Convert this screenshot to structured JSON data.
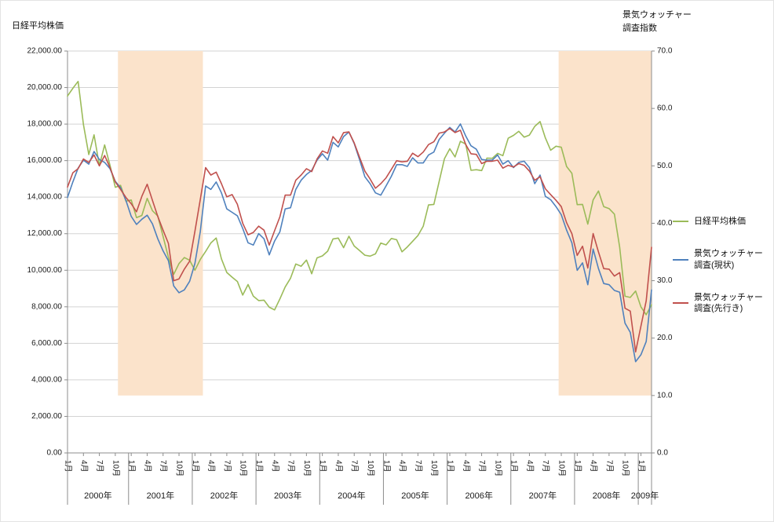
{
  "titles": {
    "left_axis_title": "日経平均株価",
    "right_axis_title": "景気ウォッチャー\n調査指数"
  },
  "legend": {
    "items": [
      {
        "name": "nikkei",
        "label": "日経平均株価",
        "color": "#9BBB59"
      },
      {
        "name": "watchers-current",
        "label": "景気ウォッチャー\n調査(現状)",
        "color": "#4F81BD"
      },
      {
        "name": "watchers-outlook",
        "label": "景気ウォッチャー\n調査(先行き)",
        "color": "#C0504D"
      }
    ]
  },
  "chart_data": {
    "type": "line",
    "title": "",
    "x": {
      "start": "2000-01",
      "end": "2009-03",
      "n_months": 111,
      "month_tick_labels": [
        "1月",
        "4月",
        "7月",
        "10月"
      ],
      "month_tick_offsets": [
        0,
        3,
        6,
        9
      ],
      "year_labels": [
        "2000年",
        "2001年",
        "2002年",
        "2003年",
        "2004年",
        "2005年",
        "2006年",
        "2007年",
        "2008年",
        "2009年"
      ]
    },
    "left_axis": {
      "title": "日経平均株価",
      "min": 0,
      "max": 22000,
      "step": 2000,
      "tick_labels": [
        "0.00",
        "2,000.00",
        "4,000.00",
        "6,000.00",
        "8,000.00",
        "10,000.00",
        "12,000.00",
        "14,000.00",
        "16,000.00",
        "18,000.00",
        "20,000.00",
        "22,000.00"
      ]
    },
    "right_axis": {
      "title": "景気ウォッチャー調査指数",
      "min": 0,
      "max": 70,
      "step": 10,
      "tick_labels": [
        "0.0",
        "10.0",
        "20.0",
        "30.0",
        "40.0",
        "50.0",
        "60.0",
        "70.0"
      ]
    },
    "shaded_bands": {
      "color": "#FBE3CB",
      "y_axis": "right",
      "y_range": [
        10,
        70
      ],
      "ranges": [
        {
          "start_index": 10,
          "end_index": 25
        },
        {
          "start_index": 93,
          "end_index": 110
        }
      ]
    },
    "grid": {
      "horizontal": true,
      "color": "#D3D3D3"
    },
    "series": [
      {
        "name": "日経平均株価",
        "axis": "left",
        "color": "#9BBB59",
        "values": [
          19539,
          19959,
          20337,
          17974,
          16332,
          17411,
          15727,
          16861,
          15747,
          14540,
          14649,
          13786,
          13844,
          12884,
          12999,
          13934,
          13262,
          12969,
          11861,
          10714,
          9775,
          10366,
          10697,
          10543,
          9997,
          10588,
          11025,
          11492,
          11764,
          10622,
          9878,
          9619,
          9383,
          8640,
          9216,
          8579,
          8339,
          8363,
          7973,
          7831,
          8425,
          9083,
          9563,
          10343,
          10219,
          10559,
          9806,
          10677,
          10784,
          11041,
          11715,
          11762,
          11236,
          11859,
          11326,
          11082,
          10824,
          10771,
          10899,
          11489,
          11388,
          11740,
          11669,
          11009,
          11277,
          11584,
          11900,
          12414,
          13574,
          13606,
          14872,
          16111,
          16649,
          16205,
          17060,
          16906,
          15467,
          15505,
          15457,
          16141,
          16128,
          16399,
          16274,
          17226,
          17383,
          17604,
          17288,
          17400,
          17876,
          18138,
          17249,
          16569,
          16786,
          16738,
          15681,
          15308,
          13592,
          13603,
          12526,
          13850,
          14339,
          13481,
          13377,
          13073,
          11260,
          8577,
          8512,
          8860,
          7994,
          7568,
          8110
        ]
      },
      {
        "name": "景気ウォッチャー調査(現状)",
        "axis": "right",
        "color": "#4F81BD",
        "values": [
          44.5,
          47.2,
          49.6,
          51.0,
          50.3,
          52.5,
          51.1,
          50.6,
          49.5,
          47.3,
          46.2,
          44.0,
          41.2,
          39.8,
          40.7,
          41.4,
          39.9,
          37.3,
          35.2,
          33.5,
          29.1,
          27.9,
          28.4,
          29.9,
          33.0,
          38.5,
          46.5,
          45.9,
          47.2,
          45.3,
          42.5,
          41.9,
          41.3,
          39.1,
          36.6,
          36.2,
          38.2,
          37.3,
          34.5,
          36.9,
          38.5,
          42.5,
          42.7,
          45.9,
          47.5,
          48.5,
          49.2,
          51.0,
          52.1,
          51.0,
          54.1,
          53.3,
          55.1,
          55.9,
          53.9,
          51.1,
          48.1,
          46.9,
          45.3,
          44.9,
          46.5,
          48.2,
          50.2,
          50.2,
          49.9,
          51.4,
          50.5,
          50.5,
          51.9,
          52.4,
          54.6,
          55.7,
          56.7,
          55.9,
          57.3,
          55.2,
          53.5,
          52.9,
          51.1,
          51.0,
          51.0,
          51.9,
          50.3,
          50.9,
          49.7,
          50.6,
          50.8,
          49.7,
          46.9,
          48.4,
          44.7,
          44.1,
          42.9,
          41.5,
          38.8,
          36.6,
          31.8,
          33.1,
          29.3,
          35.5,
          32.1,
          29.5,
          29.3,
          28.3,
          28.0,
          22.6,
          21.0,
          15.9,
          17.1,
          19.4,
          28.4
        ]
      },
      {
        "name": "景気ウォッチャー調査(先行き)",
        "axis": "right",
        "color": "#C0504D",
        "values": [
          46.3,
          48.8,
          49.5,
          51.2,
          50.6,
          51.9,
          50.0,
          51.8,
          49.7,
          47.2,
          45.9,
          44.5,
          43.4,
          42.0,
          44.7,
          46.8,
          44.0,
          41.2,
          38.8,
          36.5,
          30.0,
          30.3,
          32.0,
          33.4,
          38.6,
          44.1,
          49.7,
          48.4,
          48.9,
          46.9,
          44.6,
          45.0,
          43.3,
          40.0,
          38.0,
          38.4,
          39.5,
          38.8,
          36.2,
          38.7,
          41.1,
          44.9,
          44.9,
          47.5,
          48.4,
          49.5,
          49.0,
          51.2,
          52.6,
          52.2,
          55.1,
          54.0,
          55.8,
          55.9,
          54.0,
          51.5,
          49.1,
          47.7,
          46.1,
          46.9,
          47.9,
          49.4,
          50.9,
          50.7,
          50.8,
          52.2,
          51.6,
          52.4,
          53.7,
          54.2,
          55.7,
          55.9,
          56.5,
          55.8,
          56.2,
          53.7,
          52.1,
          52.0,
          50.4,
          50.8,
          50.8,
          51.0,
          49.6,
          50.1,
          49.8,
          50.4,
          50.1,
          49.1,
          47.5,
          48.1,
          46.0,
          45.0,
          44.0,
          42.9,
          40.1,
          38.2,
          34.4,
          36.0,
          32.2,
          38.2,
          35.0,
          32.1,
          32.0,
          30.8,
          31.4,
          25.2,
          24.7,
          17.6,
          22.1,
          26.5,
          35.8
        ]
      }
    ]
  }
}
